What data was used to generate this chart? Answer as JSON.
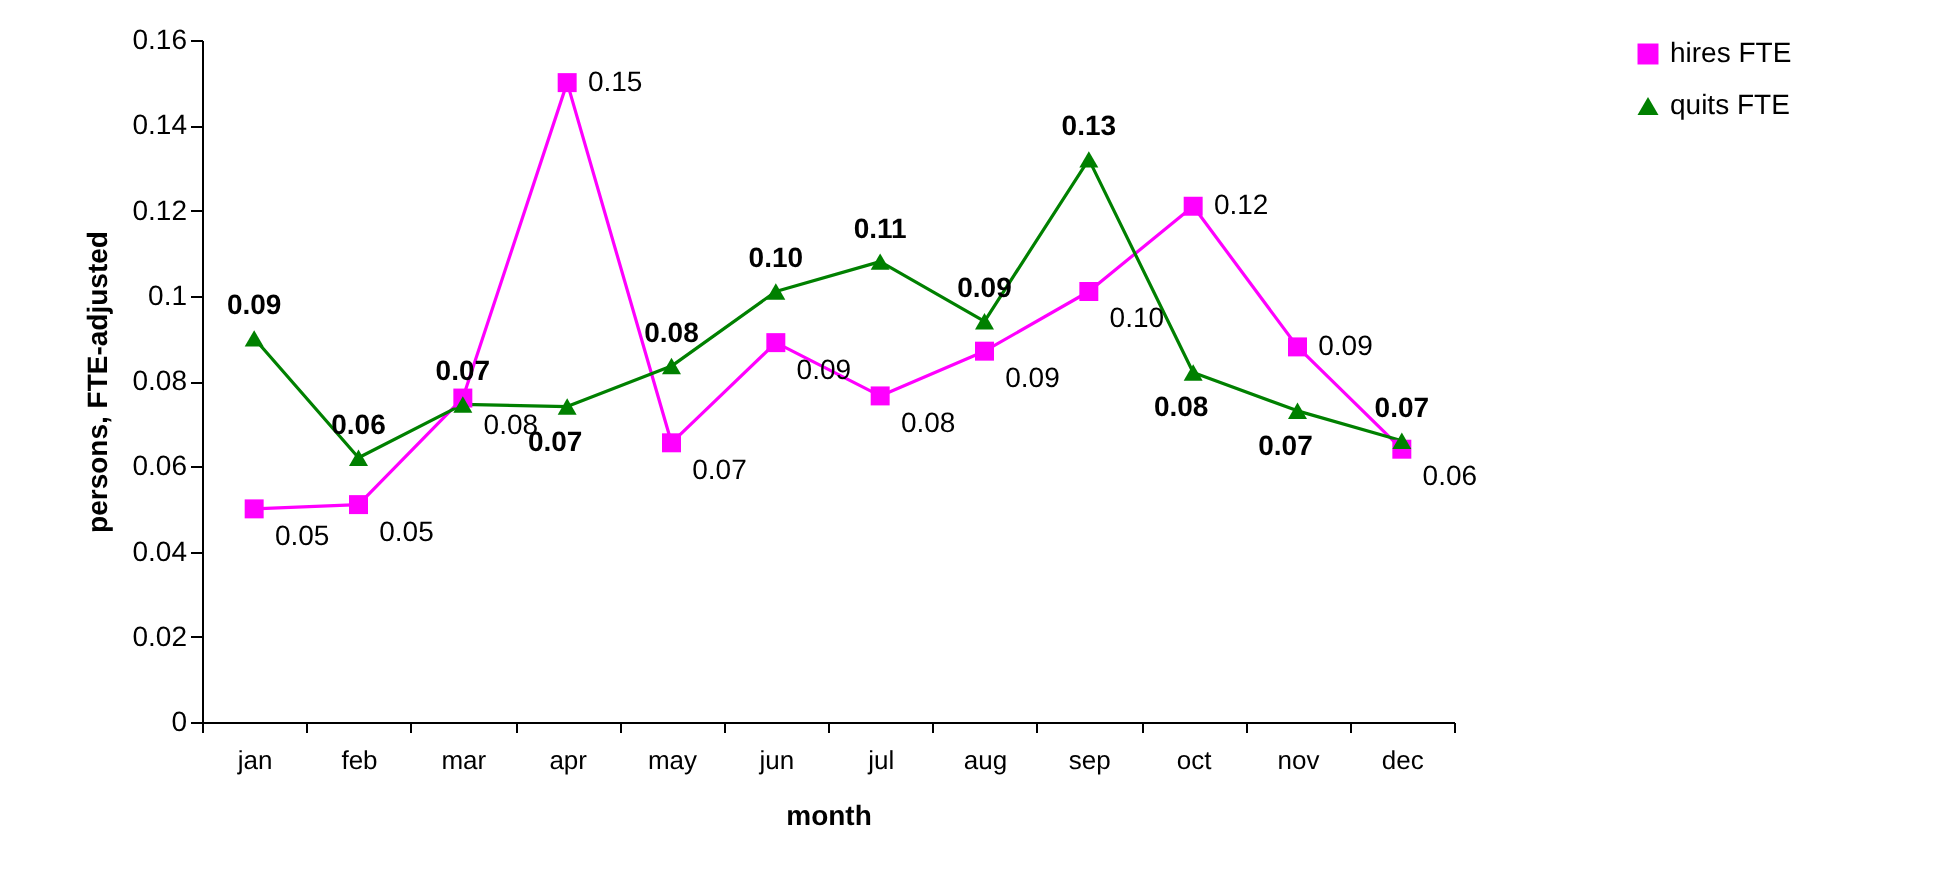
{
  "chart_data": {
    "type": "line",
    "xlabel": "month",
    "ylabel": "persons, FTE-adjusted",
    "categories": [
      "jan",
      "feb",
      "mar",
      "apr",
      "may",
      "jun",
      "jul",
      "aug",
      "sep",
      "oct",
      "nov",
      "dec"
    ],
    "series": [
      {
        "name": "hires FTE",
        "color": "#ff00ff",
        "marker": "square",
        "values": [
          0.05,
          0.051,
          0.076,
          0.15,
          0.0655,
          0.089,
          0.0765,
          0.087,
          0.101,
          0.121,
          0.088,
          0.064
        ],
        "value_labels": [
          "0.05",
          "0.05",
          "0.08",
          "0.15",
          "0.07",
          "0.09",
          "0.08",
          "0.09",
          "0.10",
          "0.12",
          "0.09",
          "0.06"
        ]
      },
      {
        "name": "quits FTE",
        "color": "#008000",
        "marker": "triangle",
        "values": [
          0.09,
          0.062,
          0.0745,
          0.074,
          0.0835,
          0.101,
          0.108,
          0.094,
          0.132,
          0.082,
          0.073,
          0.066
        ],
        "value_labels": [
          "0.09",
          "0.06",
          "0.07",
          "0.07",
          "0.08",
          "0.10",
          "0.11",
          "0.09",
          "0.13",
          "0.08",
          "0.07",
          "0.07"
        ]
      }
    ],
    "ylim": [
      0,
      0.16
    ],
    "yticks": [
      0,
      0.02,
      0.04,
      0.06,
      0.08,
      0.1,
      0.12,
      0.14,
      0.16
    ],
    "grid": false,
    "legend": "right"
  }
}
